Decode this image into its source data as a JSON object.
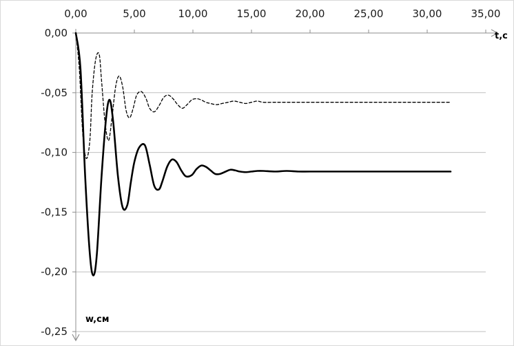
{
  "chart_data": {
    "type": "line",
    "title": "",
    "xlabel": "t,c",
    "ylabel": "w,см",
    "xlim": [
      0,
      35
    ],
    "ylim": [
      -0.25,
      0
    ],
    "x_axis_position": "top",
    "grid": "horizontal",
    "legend": "none",
    "x_ticks": [
      "0,00",
      "5,00",
      "10,00",
      "15,00",
      "20,00",
      "25,00",
      "30,00",
      "35,00"
    ],
    "y_ticks": [
      "0,00",
      "-0,05",
      "-0,10",
      "-0,15",
      "-0,20",
      "-0,25"
    ],
    "series": [
      {
        "style": "solid",
        "color": "#000000",
        "x": [
          0,
          0.4,
          0.8,
          1.2,
          1.5,
          1.8,
          2.2,
          2.6,
          2.9,
          3.2,
          3.6,
          4.0,
          4.4,
          4.7,
          5.0,
          5.4,
          5.9,
          6.3,
          6.7,
          7.1,
          7.4,
          7.8,
          8.2,
          8.6,
          9.0,
          9.4,
          9.9,
          10.3,
          10.7,
          11.1,
          11.5,
          11.9,
          12.3,
          12.8,
          13.2,
          13.6,
          14.0,
          14.5,
          15.0,
          15.5,
          16.0,
          17.0,
          18.0,
          19.0,
          20.0,
          22.0,
          25.0,
          28.0,
          32.0
        ],
        "y": [
          0.0,
          -0.03,
          -0.12,
          -0.185,
          -0.203,
          -0.185,
          -0.12,
          -0.07,
          -0.056,
          -0.075,
          -0.12,
          -0.146,
          -0.144,
          -0.125,
          -0.108,
          -0.096,
          -0.094,
          -0.11,
          -0.128,
          -0.131,
          -0.124,
          -0.112,
          -0.106,
          -0.108,
          -0.115,
          -0.12,
          -0.119,
          -0.114,
          -0.111,
          -0.112,
          -0.115,
          -0.118,
          -0.118,
          -0.116,
          -0.1145,
          -0.115,
          -0.116,
          -0.1165,
          -0.116,
          -0.1155,
          -0.1155,
          -0.116,
          -0.1155,
          -0.116,
          -0.116,
          -0.116,
          -0.116,
          -0.116,
          -0.116
        ]
      },
      {
        "style": "dashed",
        "color": "#000000",
        "x": [
          0,
          0.3,
          0.6,
          0.9,
          1.2,
          1.4,
          1.7,
          2.0,
          2.2,
          2.5,
          2.8,
          3.1,
          3.4,
          3.7,
          4.0,
          4.3,
          4.6,
          4.9,
          5.2,
          5.6,
          6.0,
          6.3,
          6.7,
          7.1,
          7.5,
          7.9,
          8.3,
          8.7,
          9.1,
          9.5,
          9.9,
          10.3,
          10.7,
          11.1,
          11.5,
          12.0,
          12.5,
          13.0,
          13.5,
          14.0,
          14.5,
          15.0,
          15.5,
          16.0,
          17.0,
          18.0,
          20.0,
          24.0,
          28.0,
          32.0
        ],
        "y": [
          0.0,
          -0.03,
          -0.085,
          -0.105,
          -0.09,
          -0.05,
          -0.022,
          -0.018,
          -0.04,
          -0.075,
          -0.09,
          -0.07,
          -0.045,
          -0.036,
          -0.045,
          -0.065,
          -0.071,
          -0.063,
          -0.052,
          -0.049,
          -0.055,
          -0.063,
          -0.066,
          -0.061,
          -0.054,
          -0.052,
          -0.055,
          -0.06,
          -0.063,
          -0.06,
          -0.056,
          -0.055,
          -0.056,
          -0.058,
          -0.059,
          -0.06,
          -0.059,
          -0.058,
          -0.057,
          -0.058,
          -0.059,
          -0.058,
          -0.057,
          -0.058,
          -0.058,
          -0.058,
          -0.058,
          -0.058,
          -0.058,
          -0.058
        ]
      }
    ]
  }
}
